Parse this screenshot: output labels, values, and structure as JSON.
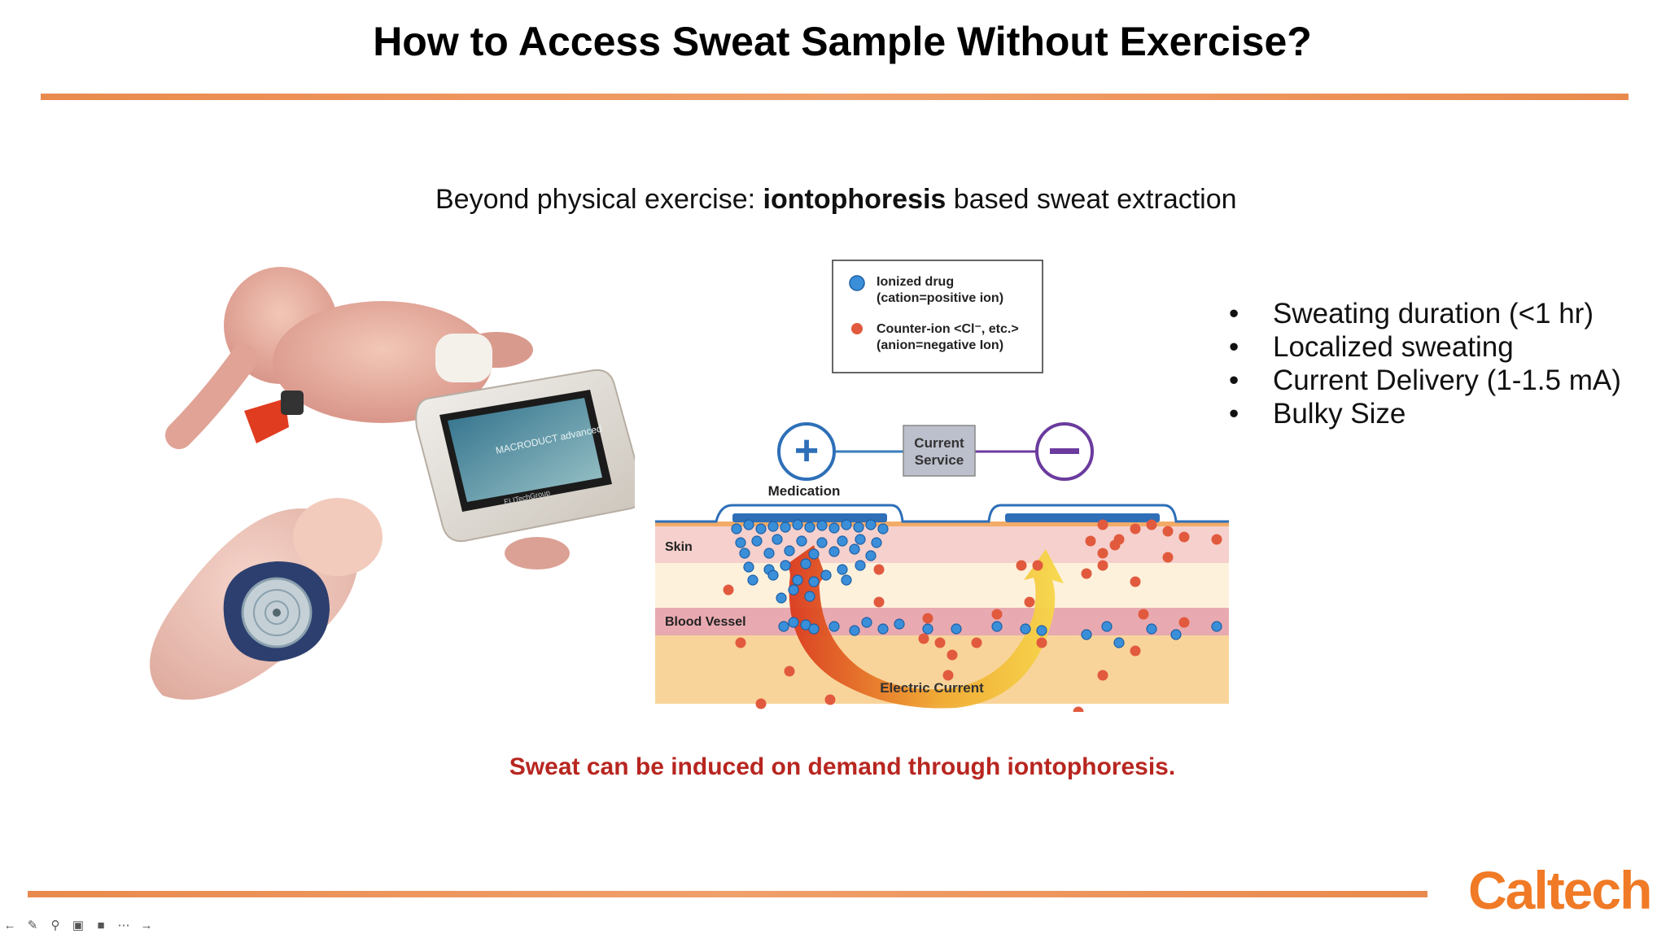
{
  "slide": {
    "title": "How to Access Sweat Sample Without Exercise?",
    "subtitle_prefix": "Beyond physical exercise: ",
    "subtitle_bold": "iontophoresis",
    "subtitle_suffix": " based sweat extraction",
    "bullets": [
      "Sweating duration (<1 hr)",
      "Localized sweating",
      "Current Delivery (1-1.5 mA)",
      "Bulky Size"
    ],
    "footnote": "Sweat can be induced on demand through iontophoresis.",
    "logo": "Caltech"
  },
  "diagram": {
    "legend": {
      "drug_line1": "Ionized drug",
      "drug_line2": "(cation=positive ion)",
      "counter_line1": "Counter-ion <Cl⁻, etc.>",
      "counter_line2": "(anion=negative Ion)"
    },
    "current_box_line1": "Current",
    "current_box_line2": "Service",
    "plus_sign": "+",
    "medication_label": "Medication",
    "skin_label": "Skin",
    "blood_vessel_label": "Blood Vessel",
    "electric_current_label": "Electric Current"
  },
  "device_text": {
    "screen_text": "MACRODUCT advanced",
    "brand_text": "ELITechGroup"
  },
  "colors": {
    "accent_orange": "#e98a4d",
    "footnote_red": "#b82620",
    "logo_orange": "#f07a26",
    "drug_blue": "#3b8fd9",
    "counter_red": "#e25a3e"
  },
  "toolbar": {
    "icons": [
      "back-icon",
      "pen-icon",
      "zoom-icon",
      "cc-icon",
      "camera-icon",
      "more-icon",
      "forward-icon"
    ]
  }
}
